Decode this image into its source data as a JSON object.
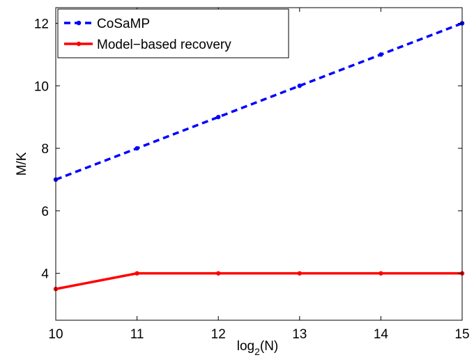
{
  "chart_data": {
    "type": "line",
    "xlabel_base": "log",
    "xlabel_sub": "2",
    "xlabel_arg": "(N)",
    "ylabel": "M/K",
    "xlim": [
      10,
      15
    ],
    "ylim": [
      2.5,
      12.5
    ],
    "xticks": [
      10,
      11,
      12,
      13,
      14,
      15
    ],
    "yticks": [
      4,
      6,
      8,
      10,
      12
    ],
    "grid": false,
    "legend_position": "top-left",
    "series": [
      {
        "name": "CoSaMP",
        "color": "#0000ff",
        "style": "dashed",
        "x": [
          10,
          11,
          12,
          13,
          14,
          15
        ],
        "y": [
          7,
          8,
          9,
          10,
          11,
          12
        ]
      },
      {
        "name": "Model−based recovery",
        "color": "#ff0000",
        "style": "solid",
        "x": [
          10,
          11,
          12,
          13,
          14,
          15
        ],
        "y": [
          3.5,
          4,
          4,
          4,
          4,
          4
        ]
      }
    ]
  }
}
